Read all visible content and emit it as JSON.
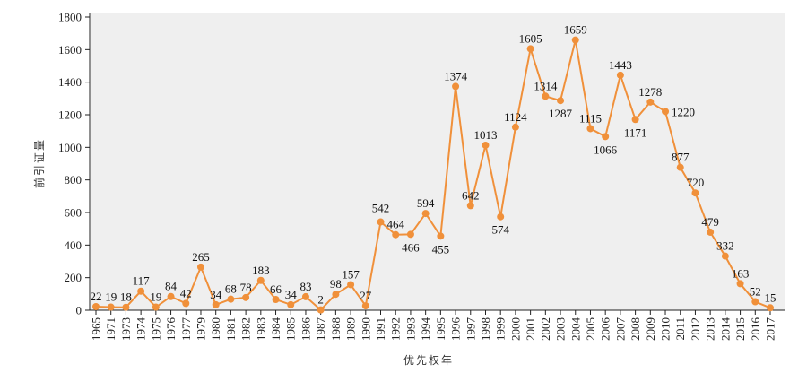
{
  "chart_data": {
    "type": "line",
    "title": "",
    "xlabel": "优先权年",
    "ylabel": "前引证量",
    "ylim": [
      0,
      1800
    ],
    "yticks": [
      0,
      200,
      400,
      600,
      800,
      1000,
      1200,
      1400,
      1600,
      1800
    ],
    "grid": false,
    "legend": "none",
    "colors": {
      "line": "#f0903a",
      "plot_bg": "#efefef",
      "axis": "#222222"
    },
    "categories": [
      "1965",
      "1971",
      "1973",
      "1974",
      "1975",
      "1976",
      "1977",
      "1979",
      "1980",
      "1981",
      "1982",
      "1983",
      "1984",
      "1985",
      "1986",
      "1987",
      "1988",
      "1989",
      "1990",
      "1991",
      "1992",
      "1993",
      "1994",
      "1995",
      "1996",
      "1997",
      "1998",
      "1999",
      "2000",
      "2001",
      "2002",
      "2003",
      "2004",
      "2005",
      "2006",
      "2007",
      "2008",
      "2009",
      "2010",
      "2011",
      "2012",
      "2013",
      "2014",
      "2015",
      "2016",
      "2017"
    ],
    "series": [
      {
        "name": "前引证量",
        "values": [
          22,
          19,
          18,
          117,
          19,
          84,
          42,
          265,
          34,
          68,
          78,
          183,
          66,
          34,
          83,
          2,
          98,
          157,
          27,
          542,
          464,
          466,
          594,
          455,
          1374,
          642,
          1013,
          574,
          1124,
          1605,
          1314,
          1287,
          1659,
          1115,
          1066,
          1443,
          1171,
          1278,
          1220,
          877,
          720,
          479,
          332,
          163,
          52,
          15
        ]
      }
    ]
  }
}
